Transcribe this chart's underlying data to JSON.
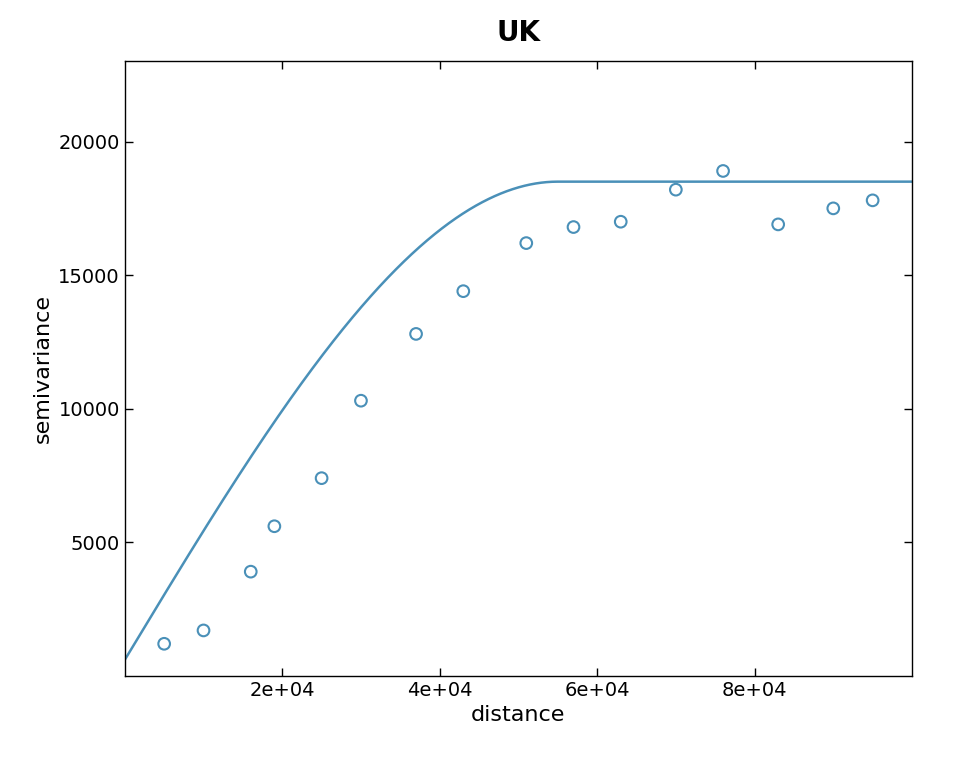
{
  "title": "UK",
  "xlabel": "distance",
  "ylabel": "semivariance",
  "title_fontsize": 20,
  "title_fontweight": "bold",
  "label_fontsize": 16,
  "tick_labelsize": 14,
  "line_color": "#4a90b8",
  "point_color": "#4a90b8",
  "background_color": "#ffffff",
  "scatter_points": [
    [
      5000,
      1200
    ],
    [
      10000,
      1700
    ],
    [
      16000,
      3900
    ],
    [
      19000,
      5600
    ],
    [
      25000,
      7400
    ],
    [
      30000,
      10300
    ],
    [
      37000,
      12800
    ],
    [
      43000,
      14400
    ],
    [
      51000,
      16200
    ],
    [
      57000,
      16800
    ],
    [
      63000,
      17000
    ],
    [
      70000,
      18200
    ],
    [
      76000,
      18900
    ],
    [
      83000,
      16900
    ],
    [
      90000,
      17500
    ],
    [
      95000,
      17800
    ]
  ],
  "nugget": 600,
  "sill": 18500,
  "range_param": 55000,
  "xlim": [
    0,
    100000
  ],
  "ylim": [
    0,
    23000
  ],
  "xticks": [
    20000,
    40000,
    60000,
    80000
  ],
  "yticks": [
    5000,
    10000,
    15000,
    20000
  ],
  "xtick_labels": [
    "2e+04",
    "4e+04",
    "6e+04",
    "8e+04"
  ],
  "ytick_labels": [
    "5000",
    "10000",
    "15000",
    "20000"
  ]
}
